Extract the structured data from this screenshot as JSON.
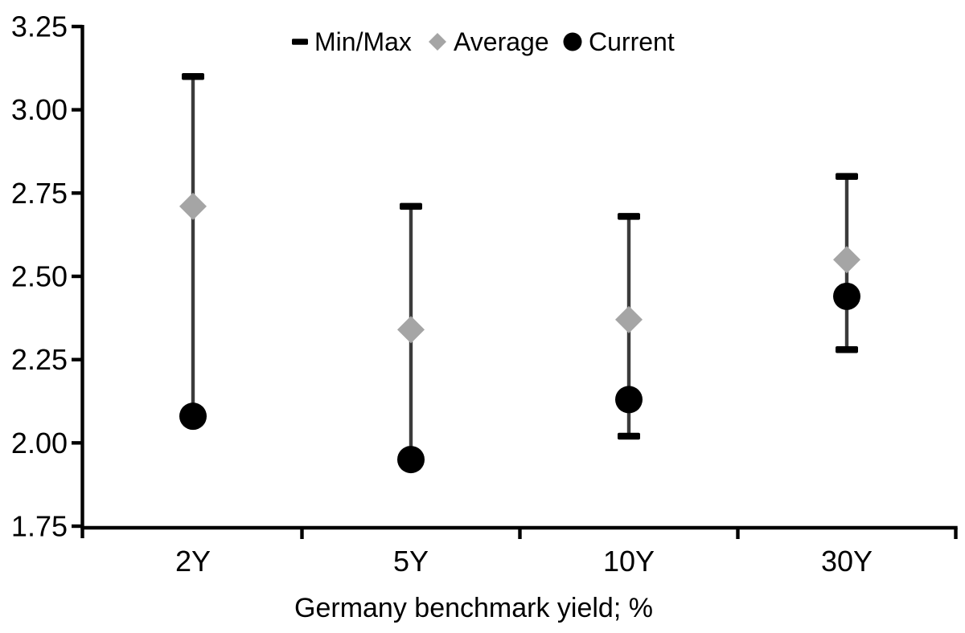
{
  "chart_data": {
    "type": "scatter",
    "subtype": "min-max-range-with-markers",
    "title": "",
    "xlabel": "Germany benchmark yield; %",
    "ylabel": "",
    "categories": [
      "2Y",
      "5Y",
      "10Y",
      "30Y"
    ],
    "ylim": [
      1.75,
      3.25
    ],
    "ytick_step": 0.25,
    "ytick_labels": [
      "3.25",
      "3.00",
      "2.75",
      "2.50",
      "2.25",
      "2.00",
      "1.75"
    ],
    "grid": false,
    "legend_position": "top-center",
    "legend": [
      {
        "label": "Min/Max",
        "marker": "dash",
        "color": "#000000"
      },
      {
        "label": "Average",
        "marker": "diamond",
        "color": "#a5a5a5"
      },
      {
        "label": "Current",
        "marker": "circle",
        "color": "#000000"
      }
    ],
    "series": [
      {
        "name": "Min/Max",
        "role": "range",
        "min": [
          2.08,
          1.95,
          2.02,
          2.28
        ],
        "max": [
          3.1,
          2.71,
          2.68,
          2.8
        ]
      },
      {
        "name": "Average",
        "role": "point",
        "marker": "diamond",
        "values": [
          2.71,
          2.34,
          2.37,
          2.55
        ]
      },
      {
        "name": "Current",
        "role": "point",
        "marker": "circle",
        "values": [
          2.08,
          1.95,
          2.13,
          2.44
        ]
      }
    ],
    "colors": {
      "axis": "#000000",
      "text": "#000000",
      "error_line": "#3b3b3b",
      "cap": "#000000",
      "average_marker": "#a5a5a5",
      "current_marker": "#000000",
      "background": "#ffffff"
    }
  }
}
